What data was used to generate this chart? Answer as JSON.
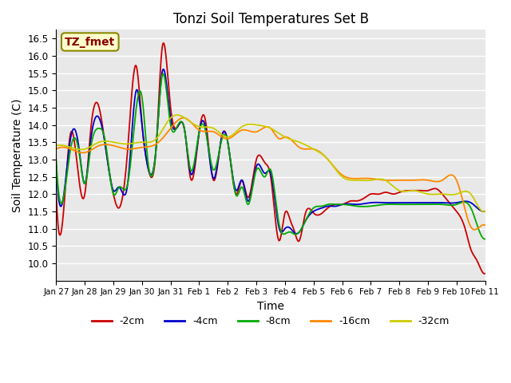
{
  "title": "Tonzi Soil Temperatures Set B",
  "xlabel": "Time",
  "ylabel": "Soil Temperature (C)",
  "annotation": "TZ_fmet",
  "ylim": [
    9.5,
    16.75
  ],
  "yticks": [
    10.0,
    10.5,
    11.0,
    11.5,
    12.0,
    12.5,
    13.0,
    13.5,
    14.0,
    14.5,
    15.0,
    15.5,
    16.0,
    16.5
  ],
  "xtick_labels": [
    "Jan 27",
    "Jan 28",
    "Jan 29",
    "Jan 30",
    "Jan 31",
    "Feb 1",
    "Feb 2",
    "Feb 3",
    "Feb 4",
    "Feb 5",
    "Feb 6",
    "Feb 7",
    "Feb 8",
    "Feb 9",
    "Feb 10",
    "Feb 11"
  ],
  "series_colors": {
    "-2cm": "#cc0000",
    "-4cm": "#0000cc",
    "-8cm": "#00aa00",
    "-16cm": "#ff8800",
    "-32cm": "#cccc00"
  },
  "series_labels": [
    "-2cm",
    "-4cm",
    "-8cm",
    "-16cm",
    "-32cm"
  ],
  "background_color": "#e8e8e8",
  "fig_background": "#ffffff",
  "grid_color": "#ffffff"
}
